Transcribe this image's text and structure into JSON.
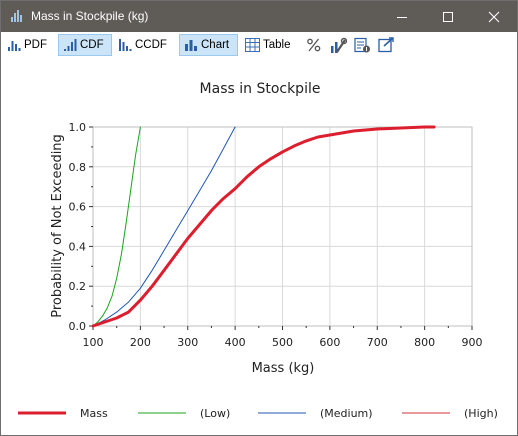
{
  "window": {
    "title": "Mass in Stockpile (kg)"
  },
  "toolbar": {
    "items": [
      {
        "label": "PDF",
        "icon": "pdf-bars-icon",
        "active": false
      },
      {
        "label": "CDF",
        "icon": "cdf-bars-icon",
        "active": true
      },
      {
        "label": "CCDF",
        "icon": "ccdf-bars-icon",
        "active": false
      },
      {
        "label": "Chart",
        "icon": "chart-bars-icon",
        "active": true
      },
      {
        "label": "Table",
        "icon": "table-grid-icon",
        "active": false
      }
    ],
    "icon_buttons": [
      "percent-icon",
      "chart-settings-icon",
      "properties-icon",
      "export-icon"
    ]
  },
  "colors": {
    "mass": "#dc1e2e",
    "low": "#19a51e",
    "medium": "#1f57b2",
    "high": "#d6323e",
    "titlebar": "#5f5b57",
    "active": "#cce4f7"
  },
  "chart_data": {
    "type": "line",
    "title": "Mass in Stockpile",
    "xlabel": "Mass (kg)",
    "ylabel": "Probability of Not Exceeding",
    "xlim": [
      100,
      900
    ],
    "ylim": [
      0,
      1
    ],
    "xticks": [
      100,
      200,
      300,
      400,
      500,
      600,
      700,
      800,
      900
    ],
    "yticks": [
      0.0,
      0.2,
      0.4,
      0.6,
      0.8,
      1.0
    ],
    "ytick_labels": [
      "0.0",
      "0.2",
      "0.4",
      "0.6",
      "0.8",
      "1.0"
    ],
    "grid": true,
    "legend_position": "bottom",
    "series": [
      {
        "name": "Mass",
        "color": "#dc1e2e",
        "x": [
          100,
          125,
          150,
          175,
          200,
          225,
          250,
          275,
          300,
          325,
          350,
          375,
          400,
          425,
          450,
          475,
          500,
          525,
          550,
          575,
          600,
          650,
          700,
          750,
          800,
          820
        ],
        "y": [
          0.0,
          0.02,
          0.04,
          0.07,
          0.13,
          0.2,
          0.28,
          0.36,
          0.44,
          0.51,
          0.58,
          0.64,
          0.69,
          0.75,
          0.8,
          0.84,
          0.875,
          0.905,
          0.93,
          0.95,
          0.96,
          0.98,
          0.99,
          0.995,
          1.0,
          1.0
        ]
      },
      {
        "name": "(Low)",
        "color": "#19a51e",
        "x": [
          100,
          110,
          120,
          130,
          140,
          150,
          160,
          170,
          180,
          190,
          200
        ],
        "y": [
          0.0,
          0.02,
          0.05,
          0.09,
          0.15,
          0.24,
          0.36,
          0.52,
          0.69,
          0.86,
          1.0
        ]
      },
      {
        "name": "(Medium)",
        "color": "#1f57b2",
        "x": [
          100,
          125,
          150,
          175,
          200,
          225,
          250,
          275,
          300,
          325,
          350,
          375,
          400
        ],
        "y": [
          0.0,
          0.03,
          0.07,
          0.12,
          0.19,
          0.28,
          0.38,
          0.48,
          0.58,
          0.68,
          0.78,
          0.89,
          1.0
        ]
      },
      {
        "name": "(High)",
        "color": "#d6323e",
        "x": [
          100,
          125,
          150,
          175,
          200,
          225,
          250,
          275,
          300,
          325,
          350,
          375,
          400,
          425,
          450,
          475,
          500,
          525,
          550,
          575,
          600,
          650,
          700,
          750,
          800,
          820
        ],
        "y": [
          0.0,
          0.02,
          0.04,
          0.07,
          0.13,
          0.2,
          0.28,
          0.36,
          0.44,
          0.51,
          0.58,
          0.64,
          0.69,
          0.75,
          0.8,
          0.84,
          0.875,
          0.905,
          0.93,
          0.95,
          0.96,
          0.98,
          0.99,
          0.995,
          1.0,
          1.0
        ]
      }
    ]
  }
}
